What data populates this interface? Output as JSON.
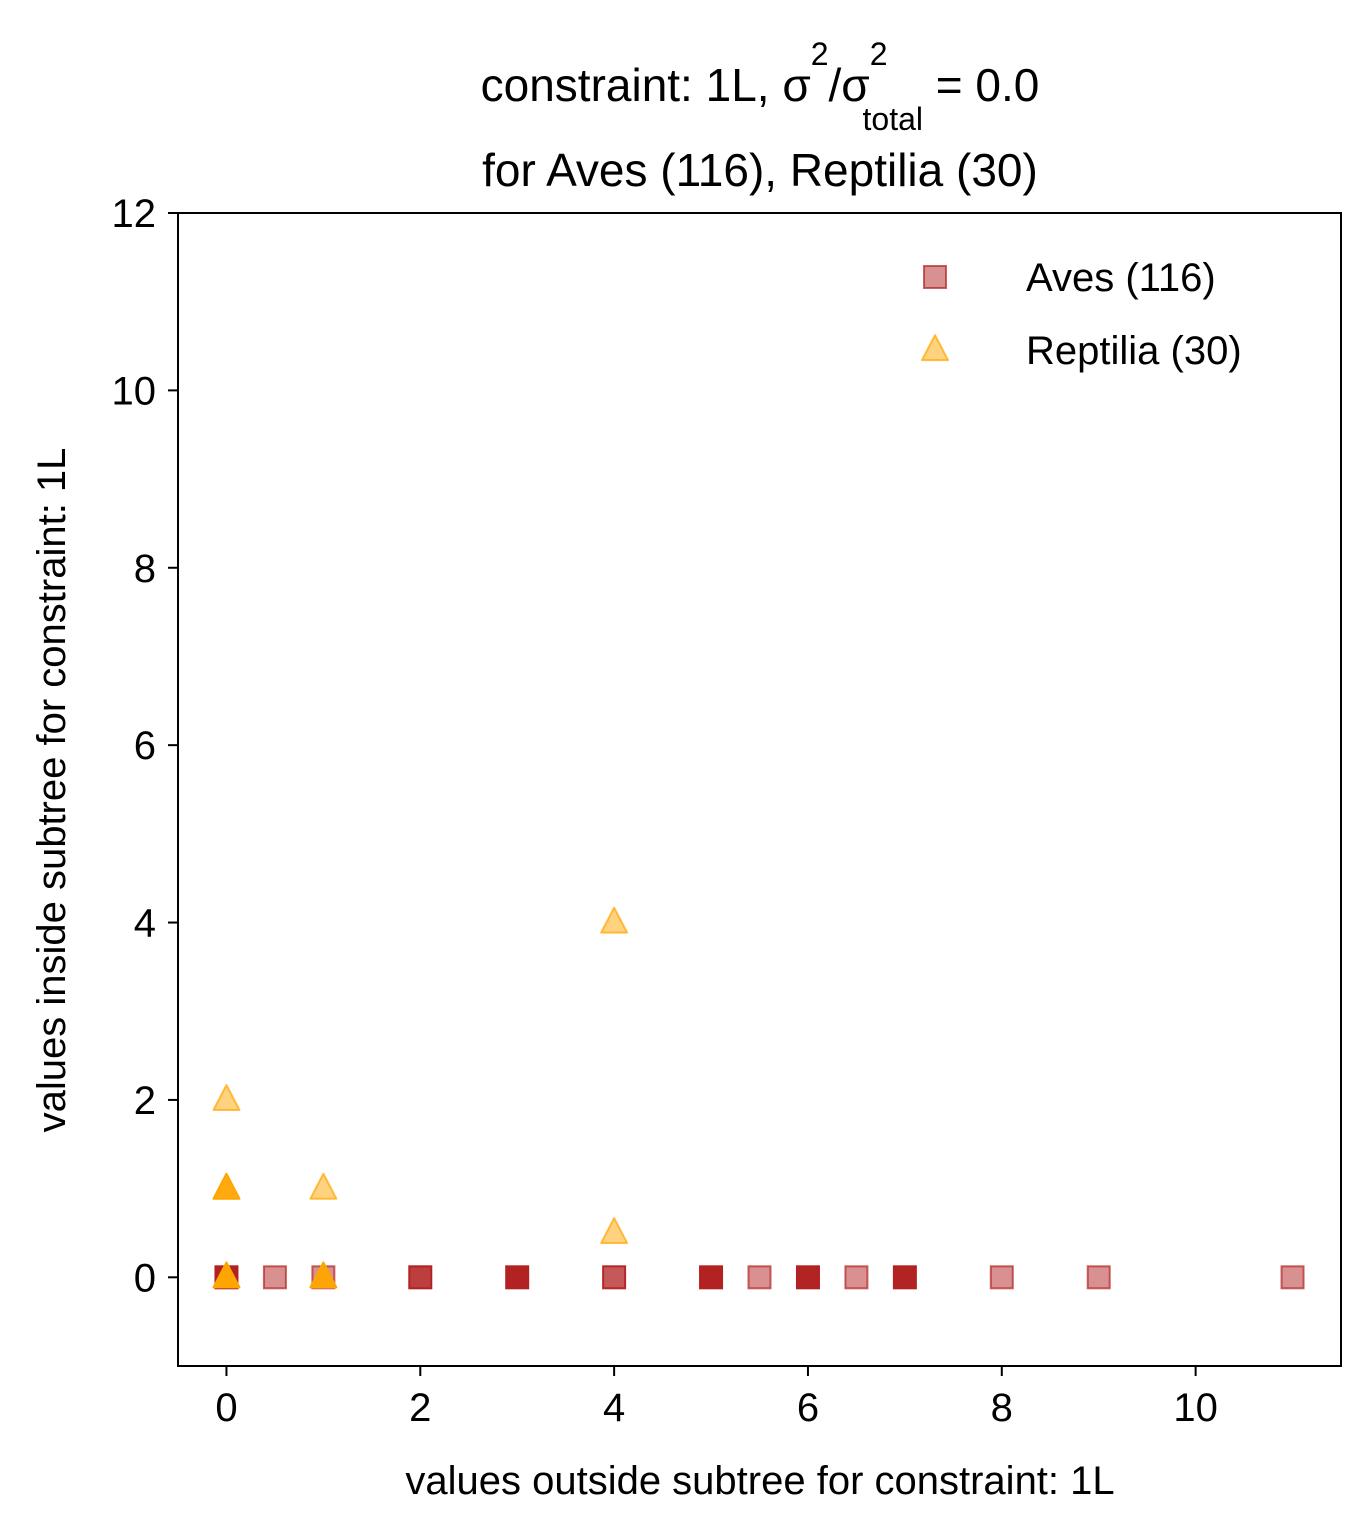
{
  "chart_data": {
    "type": "scatter",
    "title": {
      "line1_prefix": "constraint: 1L, σ",
      "sup1": "2",
      "slash": "/σ",
      "sup2": "2",
      "sub": "total",
      "suffix": " =  0.0",
      "line2": "for Aves (116), Reptilia (30)"
    },
    "xlabel": "values outside subtree for constraint: 1L",
    "ylabel": "values inside subtree for constraint: 1L",
    "xlim": [
      -0.5,
      11.5
    ],
    "ylim": [
      -1,
      12
    ],
    "xticks": [
      0,
      2,
      4,
      6,
      8,
      10
    ],
    "yticks": [
      0,
      2,
      4,
      6,
      8,
      10,
      12
    ],
    "grid": false,
    "legend_position": "top-right",
    "series": [
      {
        "name": "Aves (116)",
        "marker": "square",
        "color": "#b22222",
        "points": [
          {
            "x": 0,
            "y": 0,
            "n": 30
          },
          {
            "x": 0.5,
            "y": 0,
            "n": 1
          },
          {
            "x": 1,
            "y": 0,
            "n": 1
          },
          {
            "x": 2,
            "y": 0,
            "n": 3
          },
          {
            "x": 3,
            "y": 0,
            "n": 10
          },
          {
            "x": 4,
            "y": 0,
            "n": 2
          },
          {
            "x": 5,
            "y": 0,
            "n": 10
          },
          {
            "x": 5.5,
            "y": 0,
            "n": 1
          },
          {
            "x": 6,
            "y": 0,
            "n": 8
          },
          {
            "x": 6.5,
            "y": 0,
            "n": 1
          },
          {
            "x": 7,
            "y": 0,
            "n": 8
          },
          {
            "x": 8,
            "y": 0,
            "n": 1
          },
          {
            "x": 9,
            "y": 0,
            "n": 1
          },
          {
            "x": 11,
            "y": 0,
            "n": 1
          }
        ]
      },
      {
        "name": "Reptilia (30)",
        "marker": "triangle",
        "color": "#ffa500",
        "points": [
          {
            "x": 0,
            "y": 0,
            "n": 10
          },
          {
            "x": 0,
            "y": 1,
            "n": 4
          },
          {
            "x": 0,
            "y": 2,
            "n": 1
          },
          {
            "x": 1,
            "y": 0,
            "n": 4
          },
          {
            "x": 1,
            "y": 1,
            "n": 1
          },
          {
            "x": 4,
            "y": 4,
            "n": 1
          },
          {
            "x": 4,
            "y": 0.5,
            "n": 1
          }
        ]
      }
    ]
  }
}
